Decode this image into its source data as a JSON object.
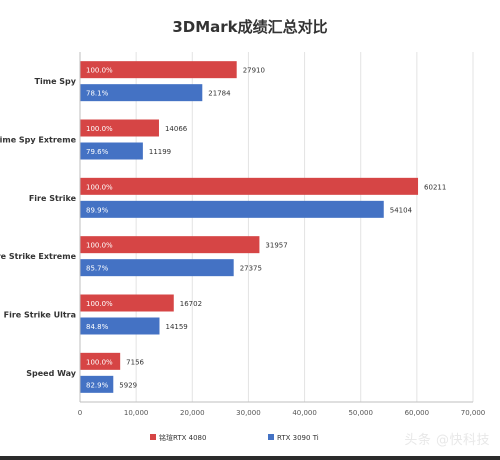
{
  "chart_data": {
    "type": "bar",
    "orientation": "horizontal",
    "title": "3DMark成绩汇总对比",
    "categories": [
      "Time Spy",
      "Time Spy Extreme",
      "Fire Strike",
      "Fire Strike Extreme",
      "Fire Strike Ultra",
      "Speed Way"
    ],
    "series": [
      {
        "name": "铭瑄RTX 4080",
        "color": "#d64545",
        "values": [
          27910,
          14066,
          60211,
          31957,
          16702,
          7156
        ],
        "percent_labels": [
          "100.0%",
          "100.0%",
          "100.0%",
          "100.0%",
          "100.0%",
          "100.0%"
        ]
      },
      {
        "name": "RTX 3090 Ti",
        "color": "#4472c4",
        "values": [
          21784,
          11199,
          54104,
          27375,
          14159,
          5929
        ],
        "percent_labels": [
          "78.1%",
          "79.6%",
          "89.9%",
          "85.7%",
          "84.8%",
          "82.9%"
        ]
      }
    ],
    "xlim": [
      0,
      70000
    ],
    "xticks": [
      0,
      10000,
      20000,
      30000,
      40000,
      50000,
      60000,
      70000
    ],
    "xtick_labels": [
      "0",
      "10,000",
      "20,000",
      "30,000",
      "40,000",
      "50,000",
      "60,000",
      "70,000"
    ],
    "legend_position": "bottom",
    "grid": true
  },
  "watermark": "头条 @快科技"
}
